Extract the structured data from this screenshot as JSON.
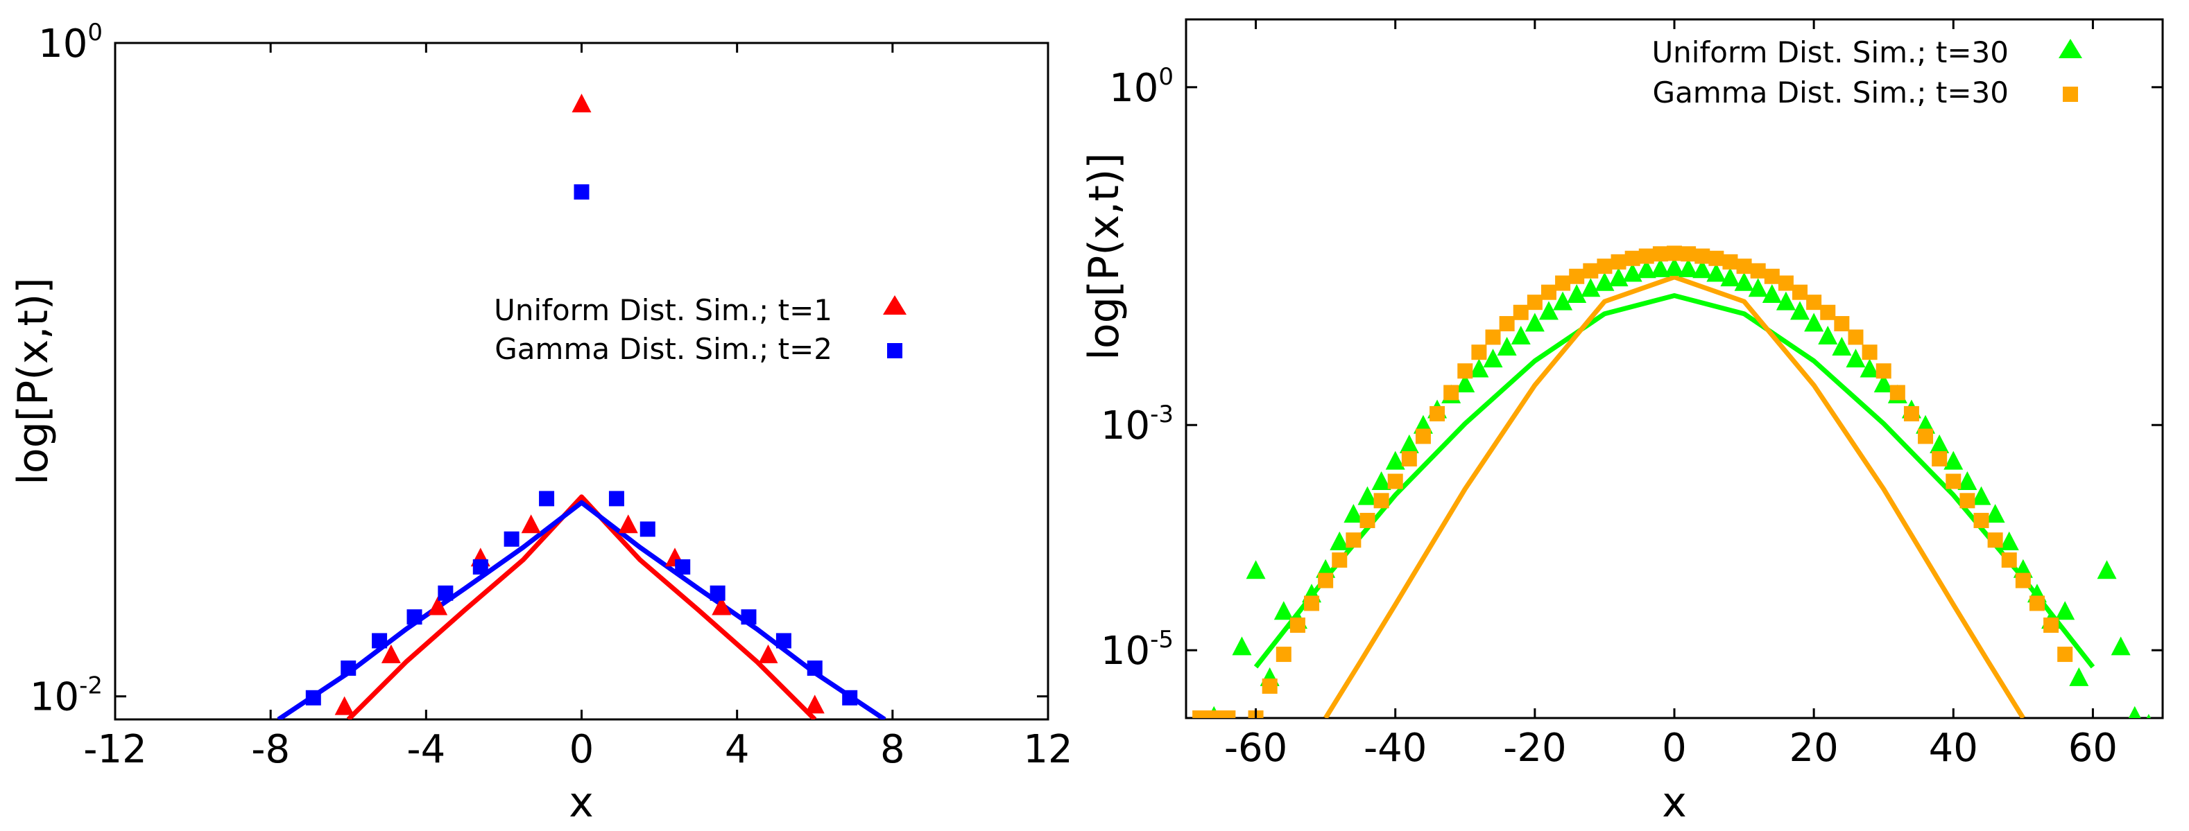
{
  "chart_data": [
    {
      "type": "scatter",
      "title": "",
      "xlabel": "x",
      "ylabel": "log[P(x,t)]",
      "xlim": [
        -12,
        12
      ],
      "ylim": [
        0.0085,
        1.0
      ],
      "yscale": "log",
      "xticks": [
        {
          "value": -12,
          "label": "-12"
        },
        {
          "value": -8,
          "label": "-8"
        },
        {
          "value": -4,
          "label": "-4"
        },
        {
          "value": 0,
          "label": "0"
        },
        {
          "value": 4,
          "label": "4"
        },
        {
          "value": 8,
          "label": "8"
        },
        {
          "value": 12,
          "label": "12"
        }
      ],
      "yticks": [
        {
          "value": 1.0,
          "base": "10",
          "exp": "0"
        },
        {
          "value": 0.01,
          "base": "10",
          "exp": "-2"
        }
      ],
      "legend_position": "center-right",
      "series": [
        {
          "name": "Uniform Dist. Sim.; t=1",
          "marker": "triangle",
          "color": "#ff0000",
          "x": [
            -6.1,
            -4.9,
            -3.7,
            -2.6,
            -1.3,
            0.0,
            1.2,
            2.4,
            3.6,
            4.8,
            6.0
          ],
          "y": [
            0.0093,
            0.0134,
            0.0188,
            0.0265,
            0.0335,
            0.65,
            0.0335,
            0.0265,
            0.0188,
            0.0134,
            0.0094
          ]
        },
        {
          "name": "Gamma Dist. Sim.; t=2",
          "marker": "square",
          "color": "#0000ff",
          "x": [
            -6.9,
            -6.0,
            -5.2,
            -4.3,
            -3.5,
            -2.6,
            -1.8,
            -0.9,
            0.0,
            0.9,
            1.7,
            2.6,
            3.5,
            4.3,
            5.2,
            6.0,
            6.9
          ],
          "y": [
            0.0099,
            0.0122,
            0.0148,
            0.0175,
            0.0207,
            0.0249,
            0.0303,
            0.0403,
            0.35,
            0.0403,
            0.0325,
            0.0249,
            0.0207,
            0.0175,
            0.0148,
            0.0122,
            0.0099
          ]
        }
      ],
      "fit_lines": [
        {
          "color": "#ff0000",
          "x": [
            -6.0,
            -4.5,
            -3.0,
            -1.5,
            0.0,
            1.5,
            3.0,
            4.5,
            6.0
          ],
          "y": [
            0.0085,
            0.0128,
            0.0184,
            0.0262,
            0.0408,
            0.0262,
            0.0184,
            0.0128,
            0.0085
          ]
        },
        {
          "color": "#0000ff",
          "x": [
            -7.8,
            -6.0,
            -4.5,
            -3.0,
            -1.5,
            0.0,
            1.5,
            3.0,
            4.5,
            6.0,
            7.8
          ],
          "y": [
            0.0085,
            0.0118,
            0.0161,
            0.0214,
            0.0286,
            0.0392,
            0.0286,
            0.0214,
            0.0161,
            0.0118,
            0.0085
          ]
        }
      ]
    },
    {
      "type": "scatter",
      "title": "",
      "xlabel": "x",
      "ylabel": "log[P(x,t)]",
      "xlim": [
        -70,
        70
      ],
      "ylim": [
        2.5e-06,
        4.0
      ],
      "yscale": "log",
      "xticks": [
        {
          "value": -60,
          "label": "-60"
        },
        {
          "value": -40,
          "label": "-40"
        },
        {
          "value": -20,
          "label": "-20"
        },
        {
          "value": 0,
          "label": "0"
        },
        {
          "value": 20,
          "label": "20"
        },
        {
          "value": 40,
          "label": "40"
        },
        {
          "value": 60,
          "label": "60"
        }
      ],
      "yticks": [
        {
          "value": 1.0,
          "base": "10",
          "exp": "0"
        },
        {
          "value": 0.001,
          "base": "10",
          "exp": "-3"
        },
        {
          "value": 1e-05,
          "base": "10",
          "exp": "-5"
        }
      ],
      "legend_position": "top-right",
      "series": [
        {
          "name": "Uniform Dist. Sim.; t=30",
          "marker": "triangle",
          "color": "#00ff00",
          "x": [
            -66,
            -62,
            -60,
            -58,
            -56,
            -54,
            -52,
            -50,
            -48,
            -46,
            -44,
            -42,
            -40,
            -38,
            -36,
            -34,
            -32,
            -30,
            -28,
            -26,
            -24,
            -22,
            -20,
            -18,
            -16,
            -14,
            -12,
            -10,
            -8,
            -6,
            -4,
            -2,
            0,
            2,
            4,
            6,
            8,
            10,
            12,
            14,
            16,
            18,
            20,
            22,
            24,
            26,
            28,
            30,
            32,
            34,
            36,
            38,
            40,
            42,
            44,
            46,
            48,
            50,
            52,
            54,
            56,
            58,
            62,
            64,
            66,
            68
          ],
          "y": [
            2.58e-06,
            1.07e-05,
            5.1e-05,
            5.7e-06,
            2.21e-05,
            1.84e-05,
            3.15e-05,
            5.21e-05,
            9.16e-05,
            0.000161,
            0.000231,
            0.000314,
            0.000476,
            0.000666,
            0.000992,
            0.00136,
            0.00185,
            0.00231,
            0.00314,
            0.00385,
            0.00491,
            0.00616,
            0.00801,
            0.0102,
            0.0124,
            0.0144,
            0.0163,
            0.0184,
            0.0202,
            0.0222,
            0.0239,
            0.0244,
            0.025,
            0.0244,
            0.0239,
            0.0222,
            0.0202,
            0.0184,
            0.0163,
            0.0144,
            0.0124,
            0.0102,
            0.00801,
            0.00616,
            0.00491,
            0.00385,
            0.00314,
            0.00231,
            0.00185,
            0.00136,
            0.000992,
            0.000666,
            0.000476,
            0.000314,
            0.000231,
            0.000161,
            9.16e-05,
            5.21e-05,
            3.15e-05,
            1.84e-05,
            2.21e-05,
            5.7e-06,
            5.1e-05,
            1.07e-05,
            2.58e-06,
            2.2e-06
          ]
        },
        {
          "name": "Gamma Dist. Sim.; t=30",
          "marker": "square",
          "color": "#ffa500",
          "x": [
            -68,
            -66,
            -64,
            -60,
            -58,
            -56,
            -54,
            -52,
            -50,
            -48,
            -46,
            -44,
            -42,
            -40,
            -38,
            -36,
            -34,
            -32,
            -30,
            -28,
            -26,
            -24,
            -22,
            -20,
            -18,
            -16,
            -14,
            -12,
            -10,
            -8,
            -6,
            -4,
            -2,
            0,
            2,
            4,
            6,
            8,
            10,
            12,
            14,
            16,
            18,
            20,
            22,
            24,
            26,
            28,
            30,
            32,
            34,
            36,
            38,
            40,
            42,
            44,
            46,
            48,
            50,
            52,
            54,
            56
          ],
          "y": [
            2.5e-06,
            2.5e-06,
            2.5e-06,
            2.5e-06,
            4.8e-06,
            9.2e-06,
            1.67e-05,
            2.61e-05,
            4.16e-05,
            6.32e-05,
            9.51e-05,
            0.000142,
            0.000213,
            0.000316,
            0.000501,
            0.000794,
            0.00126,
            0.00194,
            0.00302,
            0.00443,
            0.00603,
            0.00794,
            0.01,
            0.0123,
            0.0151,
            0.0182,
            0.0209,
            0.0234,
            0.0257,
            0.0281,
            0.0302,
            0.0316,
            0.0331,
            0.0335,
            0.0331,
            0.0316,
            0.0302,
            0.0281,
            0.0257,
            0.0234,
            0.0209,
            0.0182,
            0.0151,
            0.0123,
            0.01,
            0.00794,
            0.00603,
            0.00443,
            0.00302,
            0.00194,
            0.00126,
            0.000794,
            0.000501,
            0.000316,
            0.000213,
            0.000142,
            9.51e-05,
            6.32e-05,
            4.16e-05,
            2.61e-05,
            1.67e-05,
            9.2e-06
          ]
        }
      ],
      "fit_lines": [
        {
          "color": "#00ff00",
          "x": [
            -60,
            -50,
            -40,
            -30,
            -20,
            -10,
            0,
            10,
            20,
            30,
            40,
            50,
            60
          ],
          "y": [
            7.1e-06,
            4.37e-05,
            0.000239,
            0.00103,
            0.00371,
            0.00973,
            0.0141,
            0.00973,
            0.00371,
            0.00103,
            0.000239,
            4.37e-05,
            7.1e-06
          ]
        },
        {
          "color": "#ffa500",
          "x": [
            -50,
            -45,
            -40,
            -30,
            -20,
            -10,
            0,
            10,
            20,
            30,
            40,
            45,
            50
          ],
          "y": [
            2.5e-06,
            7.9e-06,
            2.54e-05,
            0.000271,
            0.00226,
            0.0125,
            0.0206,
            0.0125,
            0.00226,
            0.000271,
            2.54e-05,
            7.9e-06,
            2.5e-06
          ]
        }
      ]
    }
  ]
}
